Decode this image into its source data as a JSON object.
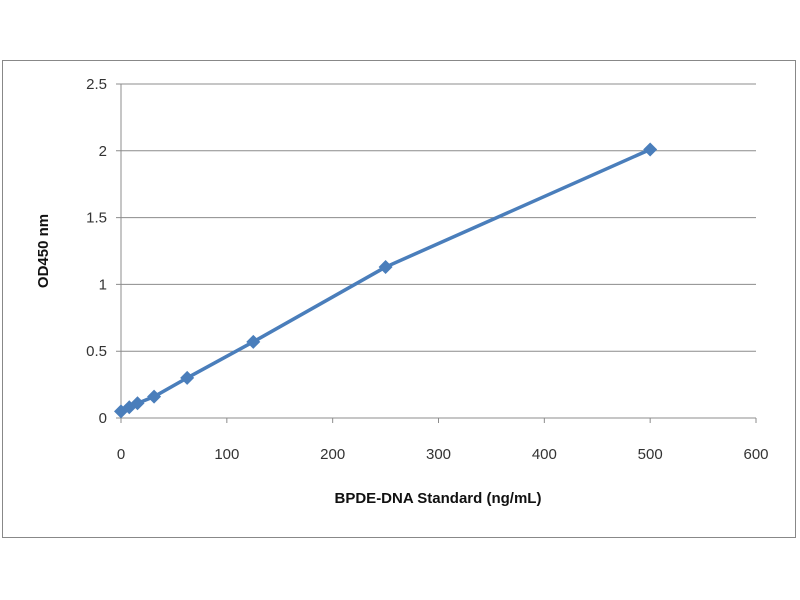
{
  "chart_data": {
    "type": "line",
    "title": "",
    "xlabel": "BPDE-DNA Standard (ng/mL)",
    "ylabel": "OD450 nm",
    "xlim": [
      0,
      600
    ],
    "ylim": [
      0,
      2.5
    ],
    "xticks": [
      "0",
      "100",
      "200",
      "300",
      "400",
      "500",
      "600"
    ],
    "yticks": [
      "0",
      "0.5",
      "1",
      "1.5",
      "2",
      "2.5"
    ],
    "grid": "horizontal",
    "marker": "diamond",
    "color": "#4a7ebb",
    "x": [
      0,
      7.8,
      15.6,
      31.25,
      62.5,
      125,
      250,
      500
    ],
    "y": [
      0.05,
      0.08,
      0.11,
      0.16,
      0.3,
      0.57,
      1.13,
      2.01
    ]
  }
}
